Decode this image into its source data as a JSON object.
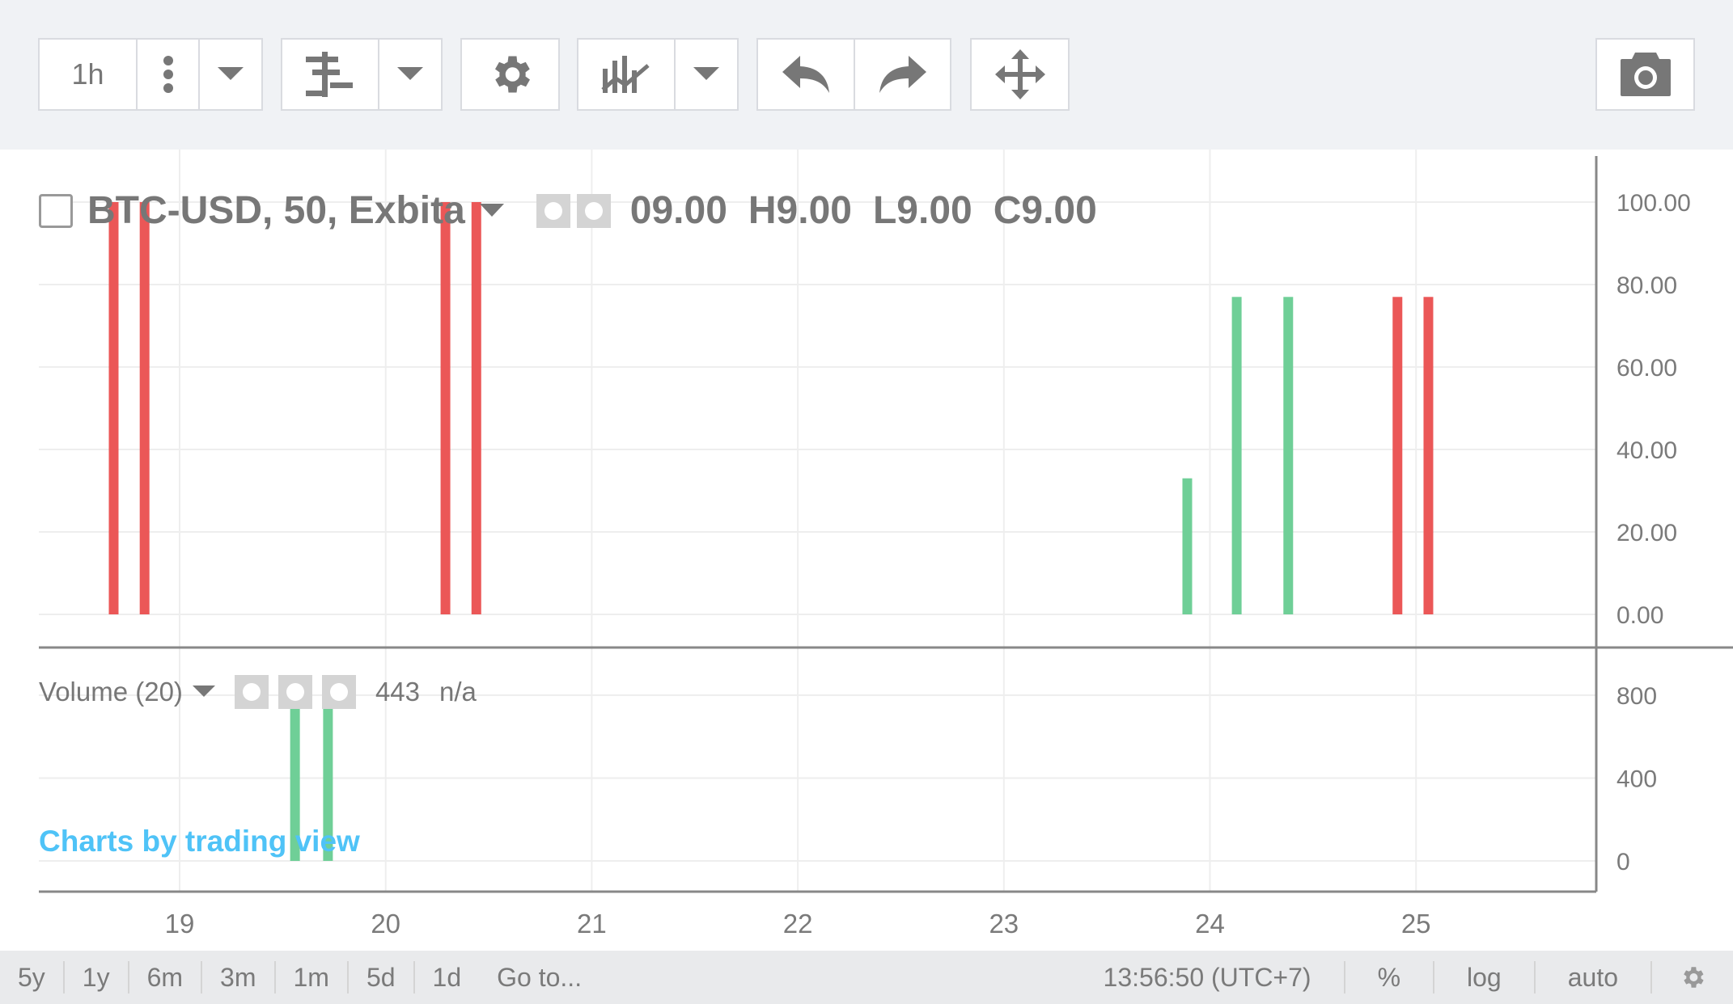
{
  "toolbar": {
    "interval": "1h",
    "icons": [
      "more-vert-icon",
      "chevron-down-icon",
      "indicators-icon",
      "chevron-down-icon",
      "gear-icon",
      "compare-icon",
      "chevron-down-icon",
      "undo-icon",
      "redo-icon",
      "move-icon",
      "camera-icon"
    ]
  },
  "legend": {
    "symbol": "BTC-USD, 50, Exbita",
    "o": "09.00",
    "h": "H9.00",
    "l": "L9.00",
    "c": "C9.00"
  },
  "volume_legend": {
    "label": "Volume (20)",
    "value": "443",
    "ma": "n/a"
  },
  "watermark": "Charts by trading view",
  "bottom": {
    "ranges": [
      "5y",
      "1y",
      "6m",
      "3m",
      "1m",
      "5d",
      "1d"
    ],
    "goto": "Go to...",
    "time": "13:56:50 (UTC+7)",
    "percent": "%",
    "log": "log",
    "auto": "auto"
  },
  "colors": {
    "up": "#6fcf97",
    "down": "#eb5757",
    "grid": "#eeeeee",
    "axis": "#888888"
  },
  "chart_data": {
    "type": "bar",
    "x_ticks": [
      "19",
      "20",
      "21",
      "22",
      "23",
      "24",
      "25"
    ],
    "price_axis": {
      "ticks": [
        "100.00",
        "80.00",
        "60.00",
        "40.00",
        "20.00",
        "0.00"
      ],
      "ylim": [
        0,
        100
      ]
    },
    "volume_axis": {
      "ticks": [
        "800",
        "400",
        "0"
      ],
      "ylim": [
        0,
        800
      ]
    },
    "price_bars": [
      {
        "x": 18.68,
        "value": 100,
        "dir": "down"
      },
      {
        "x": 18.83,
        "value": 100,
        "dir": "down"
      },
      {
        "x": 20.29,
        "value": 100,
        "dir": "down"
      },
      {
        "x": 20.44,
        "value": 100,
        "dir": "down"
      },
      {
        "x": 23.89,
        "value": 33,
        "dir": "up"
      },
      {
        "x": 24.13,
        "value": 77,
        "dir": "up"
      },
      {
        "x": 24.38,
        "value": 77,
        "dir": "up"
      },
      {
        "x": 24.91,
        "value": 77,
        "dir": "down"
      },
      {
        "x": 25.06,
        "value": 77,
        "dir": "down"
      }
    ],
    "volume_bars": [
      {
        "x": 19.56,
        "value": 740,
        "dir": "up"
      },
      {
        "x": 19.72,
        "value": 850,
        "dir": "up"
      }
    ]
  }
}
